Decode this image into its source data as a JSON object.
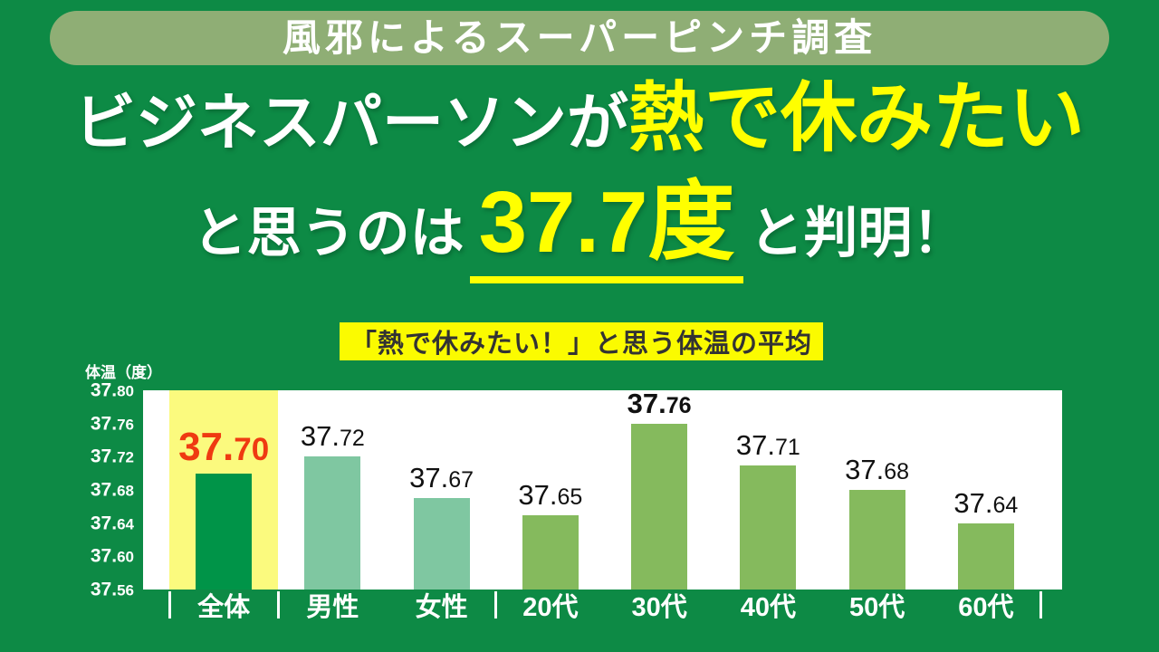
{
  "banner": {
    "label": "風邪によるスーパーピンチ調査"
  },
  "headline": {
    "line1_white": "ビジネスパーソンが",
    "line1_yellow": "熱で休みたい",
    "line2_pre": "と思うのは",
    "line2_number": "37.7度",
    "line2_post": "と判明！"
  },
  "chart_header": {
    "label": "「熱で休みたい！」と思う体温の平均"
  },
  "colors": {
    "background_green": "#0d8a45",
    "banner_green": "#8fae75",
    "headline_yellow": "#ffff00",
    "header_box_yellow": "#fbfb00",
    "highlight_column_yellow": "#fbfa7e",
    "accent_red": "#ef3a11"
  },
  "chart_data": {
    "type": "bar",
    "title": "「熱で休みたい！」と思う体温の平均",
    "xlabel": "",
    "ylabel": "体温（度）",
    "ylim": [
      37.56,
      37.8
    ],
    "yticks": [
      37.8,
      37.76,
      37.72,
      37.68,
      37.64,
      37.6,
      37.56
    ],
    "grid": false,
    "legend": "none",
    "categories": [
      "全体",
      "男性",
      "女性",
      "20代",
      "30代",
      "40代",
      "50代",
      "60代"
    ],
    "values": [
      37.7,
      37.72,
      37.67,
      37.65,
      37.76,
      37.71,
      37.68,
      37.64
    ],
    "bar_colors": [
      "#009448",
      "#7fc7a1",
      "#7fc7a1",
      "#85ba5d",
      "#85ba5d",
      "#85ba5d",
      "#85ba5d",
      "#85ba5d"
    ],
    "value_styles": [
      "red",
      "normal",
      "normal",
      "normal",
      "bold",
      "normal",
      "normal",
      "normal"
    ],
    "highlight_index": 0,
    "group_tick_boundaries": [
      0,
      1,
      3,
      8
    ]
  }
}
